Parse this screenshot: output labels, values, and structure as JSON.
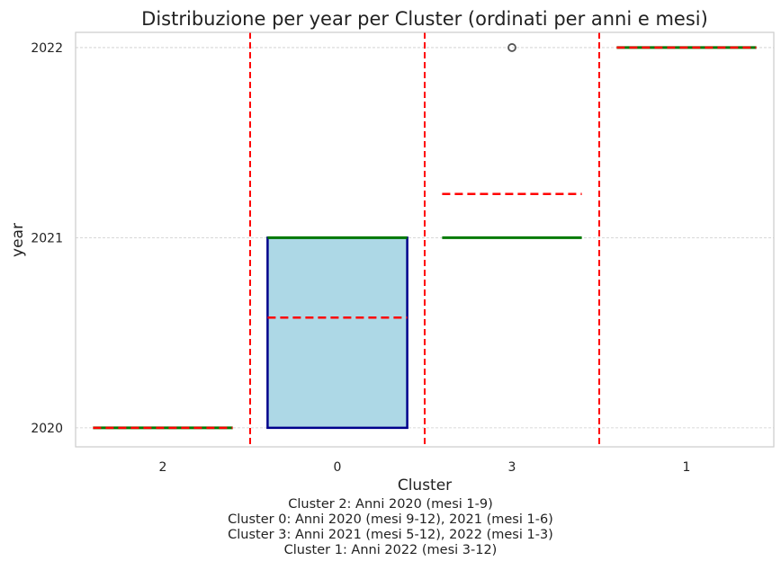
{
  "chart_data": {
    "type": "box",
    "title": "Distribuzione per year per Cluster (ordinati per anni e mesi)",
    "xlabel": "Cluster",
    "ylabel": "year",
    "categories": [
      "2",
      "0",
      "3",
      "1"
    ],
    "yticks": [
      "2020",
      "2021",
      "2022"
    ],
    "ylim": [
      2019.9,
      2022.08
    ],
    "grid": "y-dashed",
    "boxes": [
      {
        "category": "2",
        "q1": 2020,
        "median": 2020,
        "q3": 2020,
        "whisker_low": 2020,
        "whisker_high": 2020,
        "mean": 2020,
        "outliers": []
      },
      {
        "category": "0",
        "q1": 2020,
        "median": 2021,
        "q3": 2021,
        "whisker_low": 2020,
        "whisker_high": 2021,
        "mean": 2020.58,
        "outliers": []
      },
      {
        "category": "3",
        "q1": 2021,
        "median": 2021,
        "q3": 2021,
        "whisker_low": 2021,
        "whisker_high": 2021,
        "mean": 2021.23,
        "outliers": [
          2022
        ]
      },
      {
        "category": "1",
        "q1": 2022,
        "median": 2022,
        "q3": 2022,
        "whisker_low": 2022,
        "whisker_high": 2022,
        "mean": 2022,
        "outliers": []
      }
    ],
    "separators_between_categories": true,
    "colors": {
      "box_fill": "#add8e6",
      "box_edge": "#00008b",
      "median": "#007a00",
      "mean": "#ff0000",
      "separator": "#ff0000",
      "grid": "#cccccc",
      "frame": "#cccccc"
    }
  },
  "caption": [
    "Cluster 2: Anni 2020 (mesi 1-9)",
    "Cluster 0: Anni 2020 (mesi 9-12), 2021 (mesi 1-6)",
    "Cluster 3: Anni 2021 (mesi 5-12), 2022 (mesi 1-3)",
    "Cluster 1: Anni 2022 (mesi 3-12)"
  ]
}
